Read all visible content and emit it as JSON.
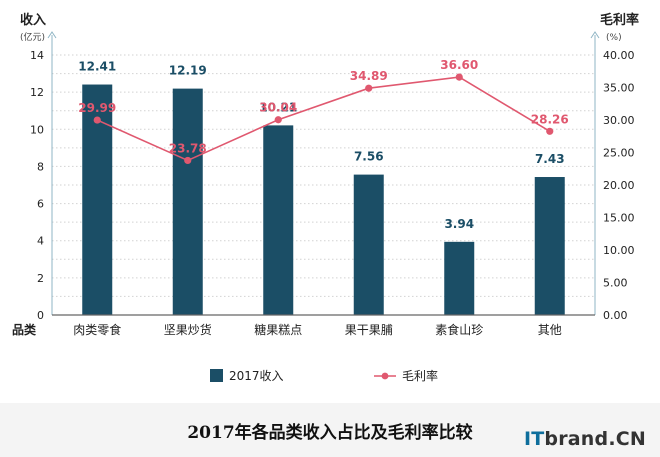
{
  "chart_data": {
    "type": "bar+line",
    "title": "2017年各品类收入占比及毛利率比较",
    "categories": [
      "肉类零食",
      "坚果炒货",
      "糖果糕点",
      "果干果脯",
      "素食山珍",
      "其他"
    ],
    "x_axis_label": "品类",
    "left_axis": {
      "label": "收入",
      "unit": "(亿元)",
      "ylim": [
        0,
        14
      ],
      "ticks": [
        "0",
        "2",
        "4",
        "6",
        "8",
        "10",
        "12",
        "14"
      ]
    },
    "right_axis": {
      "label": "毛利率",
      "unit": "(%)",
      "ylim": [
        0,
        40
      ],
      "ticks": [
        "0.00",
        "5.00",
        "10.00",
        "15.00",
        "20.00",
        "25.00",
        "30.00",
        "35.00",
        "40.00"
      ]
    },
    "series": [
      {
        "name": "2017收入",
        "type": "bar",
        "axis": "left",
        "color": "#1b4e66",
        "label_color": "#1b4e66",
        "values": [
          12.41,
          12.19,
          10.21,
          7.56,
          3.94,
          7.43
        ],
        "labels": [
          "12.41",
          "12.19",
          "10.21",
          "7.56",
          "3.94",
          "7.43"
        ]
      },
      {
        "name": "毛利率",
        "type": "line",
        "axis": "right",
        "color": "#e0586f",
        "label_color": "#e0586f",
        "values": [
          29.99,
          23.78,
          30.04,
          34.89,
          36.6,
          28.26
        ],
        "labels": [
          "29.99",
          "23.78",
          "30.04",
          "34.89",
          "36.60",
          "28.26"
        ]
      }
    ],
    "grid": "dotted horizontal",
    "legend_position": "bottom"
  },
  "brand": {
    "it": "IT",
    "rest": "brand.CN"
  }
}
